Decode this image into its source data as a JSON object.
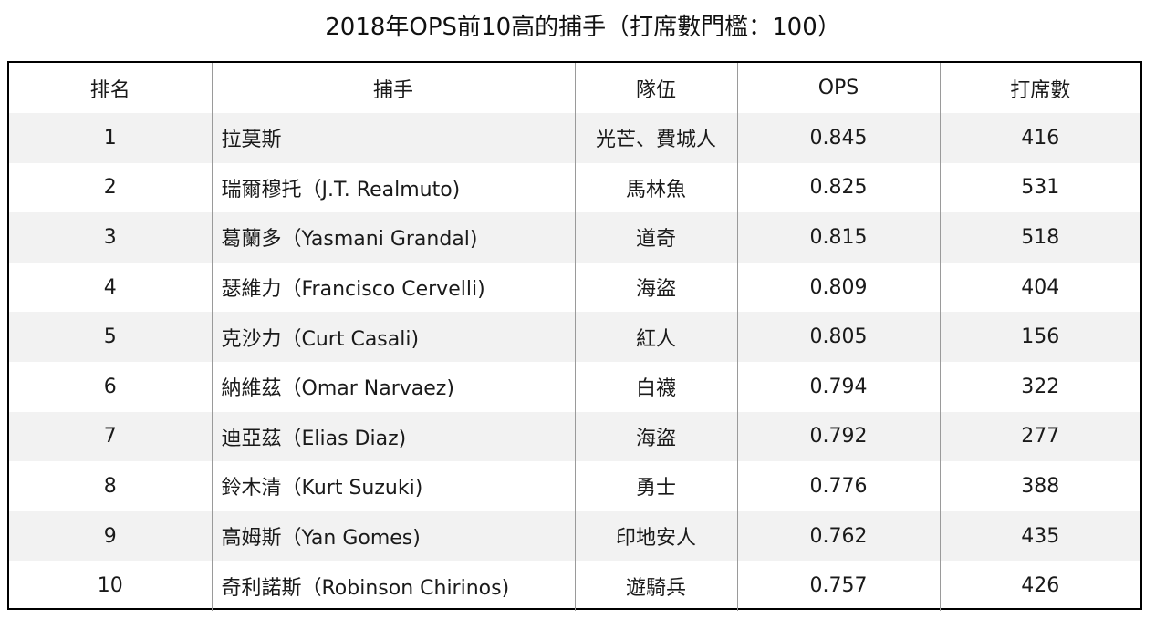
{
  "title": "2018年OPS前10高的捕手（打席數門檻：100）",
  "table": {
    "headers": [
      "排名",
      "捕手",
      "隊伍",
      "OPS",
      "打席數"
    ],
    "rows": [
      {
        "rank": "1",
        "catcher": "拉莫斯",
        "team": "光芒、費城人",
        "ops": "0.845",
        "pa": "416"
      },
      {
        "rank": "2",
        "catcher": "瑞爾穆托（J.T. Realmuto)",
        "team": "馬林魚",
        "ops": "0.825",
        "pa": "531"
      },
      {
        "rank": "3",
        "catcher": "葛蘭多（Yasmani Grandal)",
        "team": "道奇",
        "ops": "0.815",
        "pa": "518"
      },
      {
        "rank": "4",
        "catcher": "瑟維力（Francisco Cervelli)",
        "team": "海盜",
        "ops": "0.809",
        "pa": "404"
      },
      {
        "rank": "5",
        "catcher": "克沙力（Curt Casali)",
        "team": "紅人",
        "ops": "0.805",
        "pa": "156"
      },
      {
        "rank": "6",
        "catcher": "納維茲（Omar Narvaez)",
        "team": "白襪",
        "ops": "0.794",
        "pa": "322"
      },
      {
        "rank": "7",
        "catcher": "迪亞茲（Elias Diaz)",
        "team": "海盜",
        "ops": "0.792",
        "pa": "277"
      },
      {
        "rank": "8",
        "catcher": "鈴木清（Kurt Suzuki)",
        "team": "勇士",
        "ops": "0.776",
        "pa": "388"
      },
      {
        "rank": "9",
        "catcher": "高姆斯（Yan Gomes)",
        "team": "印地安人",
        "ops": "0.762",
        "pa": "435"
      },
      {
        "rank": "10",
        "catcher": "奇利諾斯（Robinson Chirinos)",
        "team": "遊騎兵",
        "ops": "0.757",
        "pa": "426"
      }
    ]
  }
}
